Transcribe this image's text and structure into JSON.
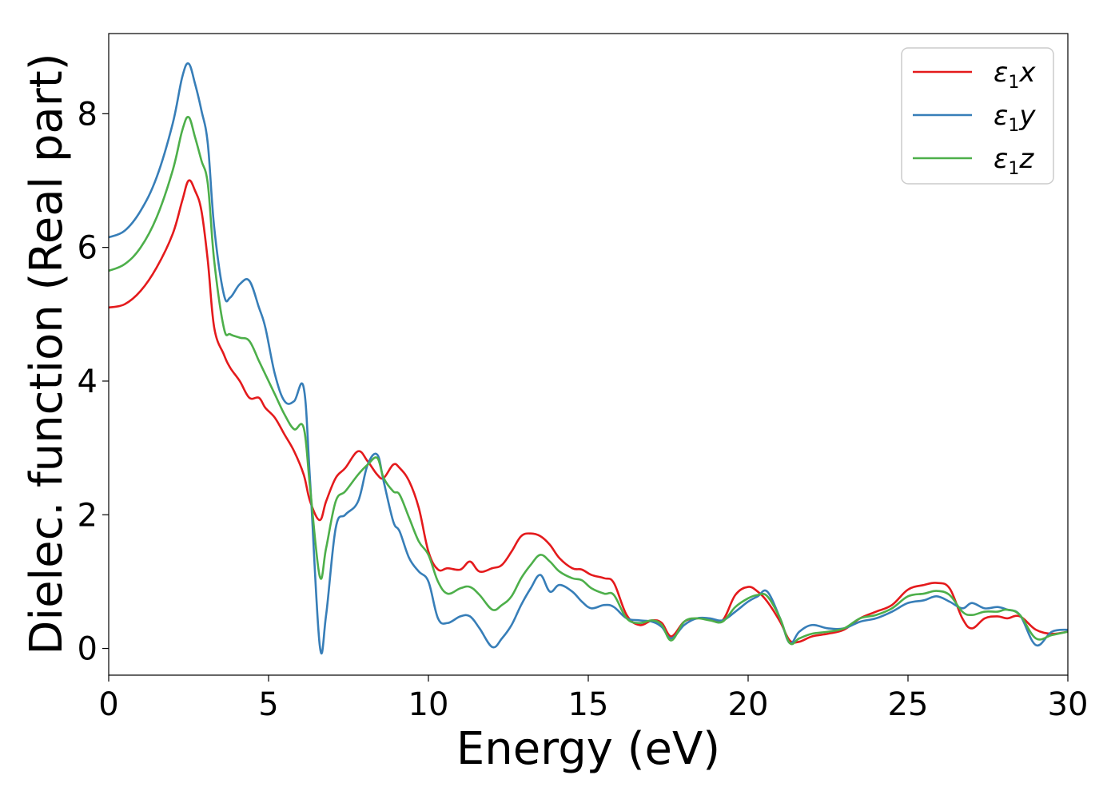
{
  "chart_data": {
    "type": "line",
    "xlabel": "Energy (eV)",
    "ylabel": "Dielec. function (Real part)",
    "xlim": [
      0,
      30
    ],
    "ylim": [
      -0.4,
      9.2
    ],
    "xticks": [
      0,
      5,
      10,
      15,
      20,
      25,
      30
    ],
    "yticks": [
      0,
      2,
      4,
      6,
      8
    ],
    "xtick_labels": [
      "0",
      "5",
      "10",
      "15",
      "20",
      "25",
      "30"
    ],
    "ytick_labels": [
      "0",
      "2",
      "4",
      "6",
      "8"
    ],
    "grid": false,
    "legend_position": "top-right",
    "series": [
      {
        "name": "ε1x",
        "legend_symbol": "ε",
        "legend_sub": "1",
        "legend_var": "x",
        "color": "#e41a1c",
        "x": [
          0,
          0.5,
          1,
          1.5,
          2,
          2.3,
          2.5,
          2.7,
          2.9,
          3.1,
          3.3,
          3.6,
          3.8,
          4.1,
          4.4,
          4.7,
          4.9,
          5.2,
          5.5,
          5.8,
          6.1,
          6.3,
          6.6,
          6.8,
          7.1,
          7.4,
          7.8,
          8.1,
          8.4,
          8.6,
          8.9,
          9.1,
          9.4,
          9.7,
          10,
          10.3,
          10.6,
          11,
          11.3,
          11.6,
          12,
          12.3,
          12.6,
          12.9,
          13.2,
          13.5,
          13.8,
          14.1,
          14.5,
          14.8,
          15.1,
          15.5,
          15.8,
          16.2,
          16.6,
          17,
          17.3,
          17.6,
          18,
          18.4,
          18.8,
          19.2,
          19.6,
          20,
          20.3,
          20.6,
          21,
          21.3,
          21.6,
          22,
          22.5,
          23,
          23.5,
          24,
          24.5,
          25,
          25.5,
          25.9,
          26.3,
          26.7,
          27,
          27.4,
          27.8,
          28.1,
          28.5,
          29,
          29.5,
          30
        ],
        "y": [
          5.1,
          5.15,
          5.35,
          5.7,
          6.2,
          6.7,
          7.0,
          6.85,
          6.55,
          5.8,
          4.8,
          4.4,
          4.2,
          4.0,
          3.75,
          3.75,
          3.6,
          3.45,
          3.2,
          2.95,
          2.6,
          2.2,
          1.92,
          2.2,
          2.55,
          2.7,
          2.95,
          2.8,
          2.6,
          2.55,
          2.75,
          2.7,
          2.5,
          2.1,
          1.45,
          1.18,
          1.2,
          1.18,
          1.3,
          1.15,
          1.2,
          1.25,
          1.45,
          1.68,
          1.72,
          1.68,
          1.55,
          1.35,
          1.2,
          1.18,
          1.1,
          1.05,
          0.98,
          0.5,
          0.35,
          0.42,
          0.38,
          0.18,
          0.4,
          0.45,
          0.44,
          0.42,
          0.8,
          0.92,
          0.85,
          0.7,
          0.4,
          0.12,
          0.1,
          0.18,
          0.22,
          0.28,
          0.45,
          0.55,
          0.65,
          0.88,
          0.95,
          0.98,
          0.9,
          0.45,
          0.3,
          0.45,
          0.48,
          0.45,
          0.48,
          0.28,
          0.22,
          0.25
        ]
      },
      {
        "name": "ε1y",
        "legend_symbol": "ε",
        "legend_sub": "1",
        "legend_var": "y",
        "color": "#377eb8",
        "x": [
          0,
          0.5,
          1,
          1.5,
          2,
          2.3,
          2.5,
          2.7,
          2.9,
          3.1,
          3.3,
          3.6,
          3.8,
          4.1,
          4.4,
          4.7,
          4.9,
          5.2,
          5.5,
          5.8,
          6.1,
          6.3,
          6.6,
          6.8,
          7.1,
          7.4,
          7.8,
          8.1,
          8.4,
          8.6,
          8.9,
          9.1,
          9.4,
          9.7,
          10,
          10.3,
          10.6,
          11,
          11.3,
          11.6,
          12,
          12.3,
          12.6,
          12.9,
          13.2,
          13.5,
          13.8,
          14.1,
          14.5,
          14.8,
          15.1,
          15.5,
          15.8,
          16.2,
          16.6,
          17,
          17.3,
          17.6,
          18,
          18.4,
          18.8,
          19.2,
          19.6,
          20,
          20.3,
          20.6,
          21,
          21.3,
          21.6,
          22,
          22.5,
          23,
          23.5,
          24,
          24.5,
          25,
          25.5,
          25.9,
          26.3,
          26.7,
          27,
          27.4,
          27.8,
          28.1,
          28.5,
          29,
          29.5,
          30
        ],
        "y": [
          6.15,
          6.25,
          6.55,
          7.05,
          7.85,
          8.55,
          8.75,
          8.45,
          8.05,
          7.55,
          6.3,
          5.3,
          5.25,
          5.45,
          5.5,
          5.1,
          4.8,
          4.1,
          3.7,
          3.7,
          3.9,
          2.5,
          0.05,
          0.5,
          1.8,
          2.0,
          2.2,
          2.75,
          2.9,
          2.5,
          1.9,
          1.75,
          1.35,
          1.15,
          1.0,
          0.45,
          0.38,
          0.48,
          0.48,
          0.3,
          0.02,
          0.15,
          0.35,
          0.65,
          0.9,
          1.1,
          0.85,
          0.95,
          0.85,
          0.7,
          0.6,
          0.65,
          0.62,
          0.45,
          0.42,
          0.4,
          0.32,
          0.15,
          0.35,
          0.45,
          0.45,
          0.42,
          0.55,
          0.7,
          0.78,
          0.85,
          0.45,
          0.08,
          0.25,
          0.35,
          0.3,
          0.3,
          0.4,
          0.45,
          0.55,
          0.68,
          0.72,
          0.78,
          0.7,
          0.6,
          0.68,
          0.6,
          0.62,
          0.58,
          0.5,
          0.05,
          0.25,
          0.28
        ]
      },
      {
        "name": "ε1z",
        "legend_symbol": "ε",
        "legend_sub": "1",
        "legend_var": "z",
        "color": "#4daf4a",
        "x": [
          0,
          0.5,
          1,
          1.5,
          2,
          2.3,
          2.5,
          2.7,
          2.9,
          3.1,
          3.3,
          3.6,
          3.8,
          4.1,
          4.4,
          4.7,
          4.9,
          5.2,
          5.5,
          5.8,
          6.1,
          6.3,
          6.6,
          6.8,
          7.1,
          7.4,
          7.8,
          8.1,
          8.4,
          8.6,
          8.9,
          9.1,
          9.4,
          9.7,
          10,
          10.3,
          10.6,
          11,
          11.3,
          11.6,
          12,
          12.3,
          12.6,
          12.9,
          13.2,
          13.5,
          13.8,
          14.1,
          14.5,
          14.8,
          15.1,
          15.5,
          15.8,
          16.2,
          16.6,
          17,
          17.3,
          17.6,
          18,
          18.4,
          18.8,
          19.2,
          19.6,
          20,
          20.3,
          20.6,
          21,
          21.3,
          21.6,
          22,
          22.5,
          23,
          23.5,
          24,
          24.5,
          25,
          25.5,
          25.9,
          26.3,
          26.7,
          27,
          27.4,
          27.8,
          28.1,
          28.5,
          29,
          29.5,
          30
        ],
        "y": [
          5.65,
          5.75,
          6.0,
          6.45,
          7.15,
          7.75,
          7.95,
          7.65,
          7.3,
          6.95,
          5.8,
          4.8,
          4.7,
          4.65,
          4.6,
          4.3,
          4.1,
          3.8,
          3.5,
          3.28,
          3.3,
          2.4,
          1.08,
          1.5,
          2.2,
          2.35,
          2.6,
          2.75,
          2.85,
          2.55,
          2.35,
          2.3,
          1.95,
          1.6,
          1.4,
          1.0,
          0.82,
          0.9,
          0.92,
          0.8,
          0.58,
          0.65,
          0.78,
          1.05,
          1.25,
          1.4,
          1.3,
          1.15,
          1.05,
          1.02,
          0.9,
          0.82,
          0.8,
          0.45,
          0.38,
          0.42,
          0.35,
          0.12,
          0.4,
          0.45,
          0.42,
          0.4,
          0.62,
          0.75,
          0.8,
          0.78,
          0.45,
          0.08,
          0.15,
          0.22,
          0.25,
          0.3,
          0.45,
          0.5,
          0.6,
          0.78,
          0.82,
          0.86,
          0.8,
          0.55,
          0.5,
          0.55,
          0.55,
          0.58,
          0.5,
          0.15,
          0.2,
          0.25
        ]
      }
    ]
  }
}
